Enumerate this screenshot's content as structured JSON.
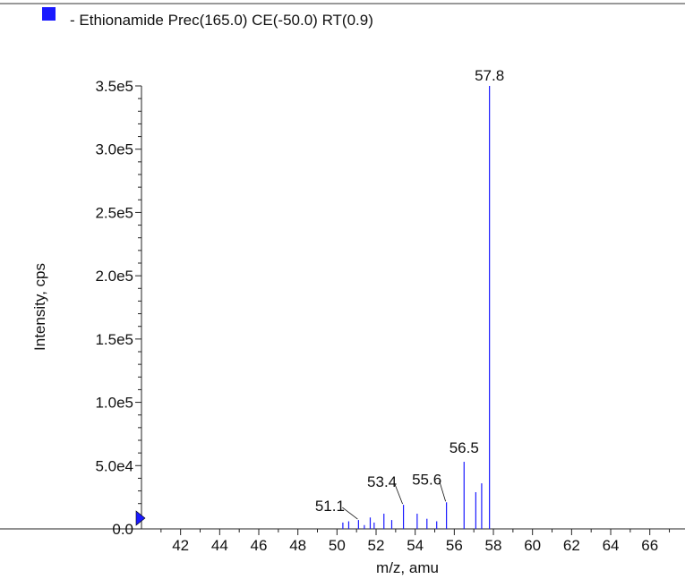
{
  "legend": {
    "marker_color": "#1a1aff",
    "label": "- Ethionamide Prec(165.0) CE(-50.0) RT(0.9)"
  },
  "chart_data": {
    "type": "bar",
    "title": "",
    "xlabel": "m/z, amu",
    "ylabel": "Intensity, cps",
    "xlim": [
      40.0,
      67.8
    ],
    "ylim": [
      0,
      350000
    ],
    "x_ticks": [
      42,
      44,
      46,
      48,
      50,
      52,
      54,
      56,
      58,
      60,
      62,
      64,
      66
    ],
    "y_ticks": [
      {
        "value": 0,
        "label": "0.0"
      },
      {
        "value": 50000,
        "label": "5.0e4"
      },
      {
        "value": 100000,
        "label": "1.0e5"
      },
      {
        "value": 150000,
        "label": "1.5e5"
      },
      {
        "value": 200000,
        "label": "2.0e5"
      },
      {
        "value": 250000,
        "label": "2.5e5"
      },
      {
        "value": 300000,
        "label": "3.0e5"
      },
      {
        "value": 350000,
        "label": "3.5e5"
      }
    ],
    "series_color": "#1a1aff",
    "peaks": [
      {
        "x": 50.3,
        "y": 5000
      },
      {
        "x": 50.6,
        "y": 6000
      },
      {
        "x": 51.1,
        "y": 7000
      },
      {
        "x": 51.4,
        "y": 3000
      },
      {
        "x": 51.7,
        "y": 9000
      },
      {
        "x": 51.9,
        "y": 5000
      },
      {
        "x": 52.4,
        "y": 12000
      },
      {
        "x": 52.8,
        "y": 7000
      },
      {
        "x": 53.4,
        "y": 19000
      },
      {
        "x": 54.1,
        "y": 12000
      },
      {
        "x": 54.6,
        "y": 8000
      },
      {
        "x": 55.1,
        "y": 6000
      },
      {
        "x": 55.6,
        "y": 21000
      },
      {
        "x": 56.5,
        "y": 53000
      },
      {
        "x": 57.1,
        "y": 29000
      },
      {
        "x": 57.4,
        "y": 36000
      },
      {
        "x": 57.8,
        "y": 350000
      }
    ],
    "peak_labels": [
      {
        "text": "51.1",
        "x": 51.1,
        "y": 7000
      },
      {
        "text": "53.4",
        "x": 53.4,
        "y": 19000
      },
      {
        "text": "55.6",
        "x": 55.6,
        "y": 21000
      },
      {
        "text": "56.5",
        "x": 56.5,
        "y": 53000
      },
      {
        "text": "57.8",
        "x": 57.8,
        "y": 350000
      }
    ]
  }
}
